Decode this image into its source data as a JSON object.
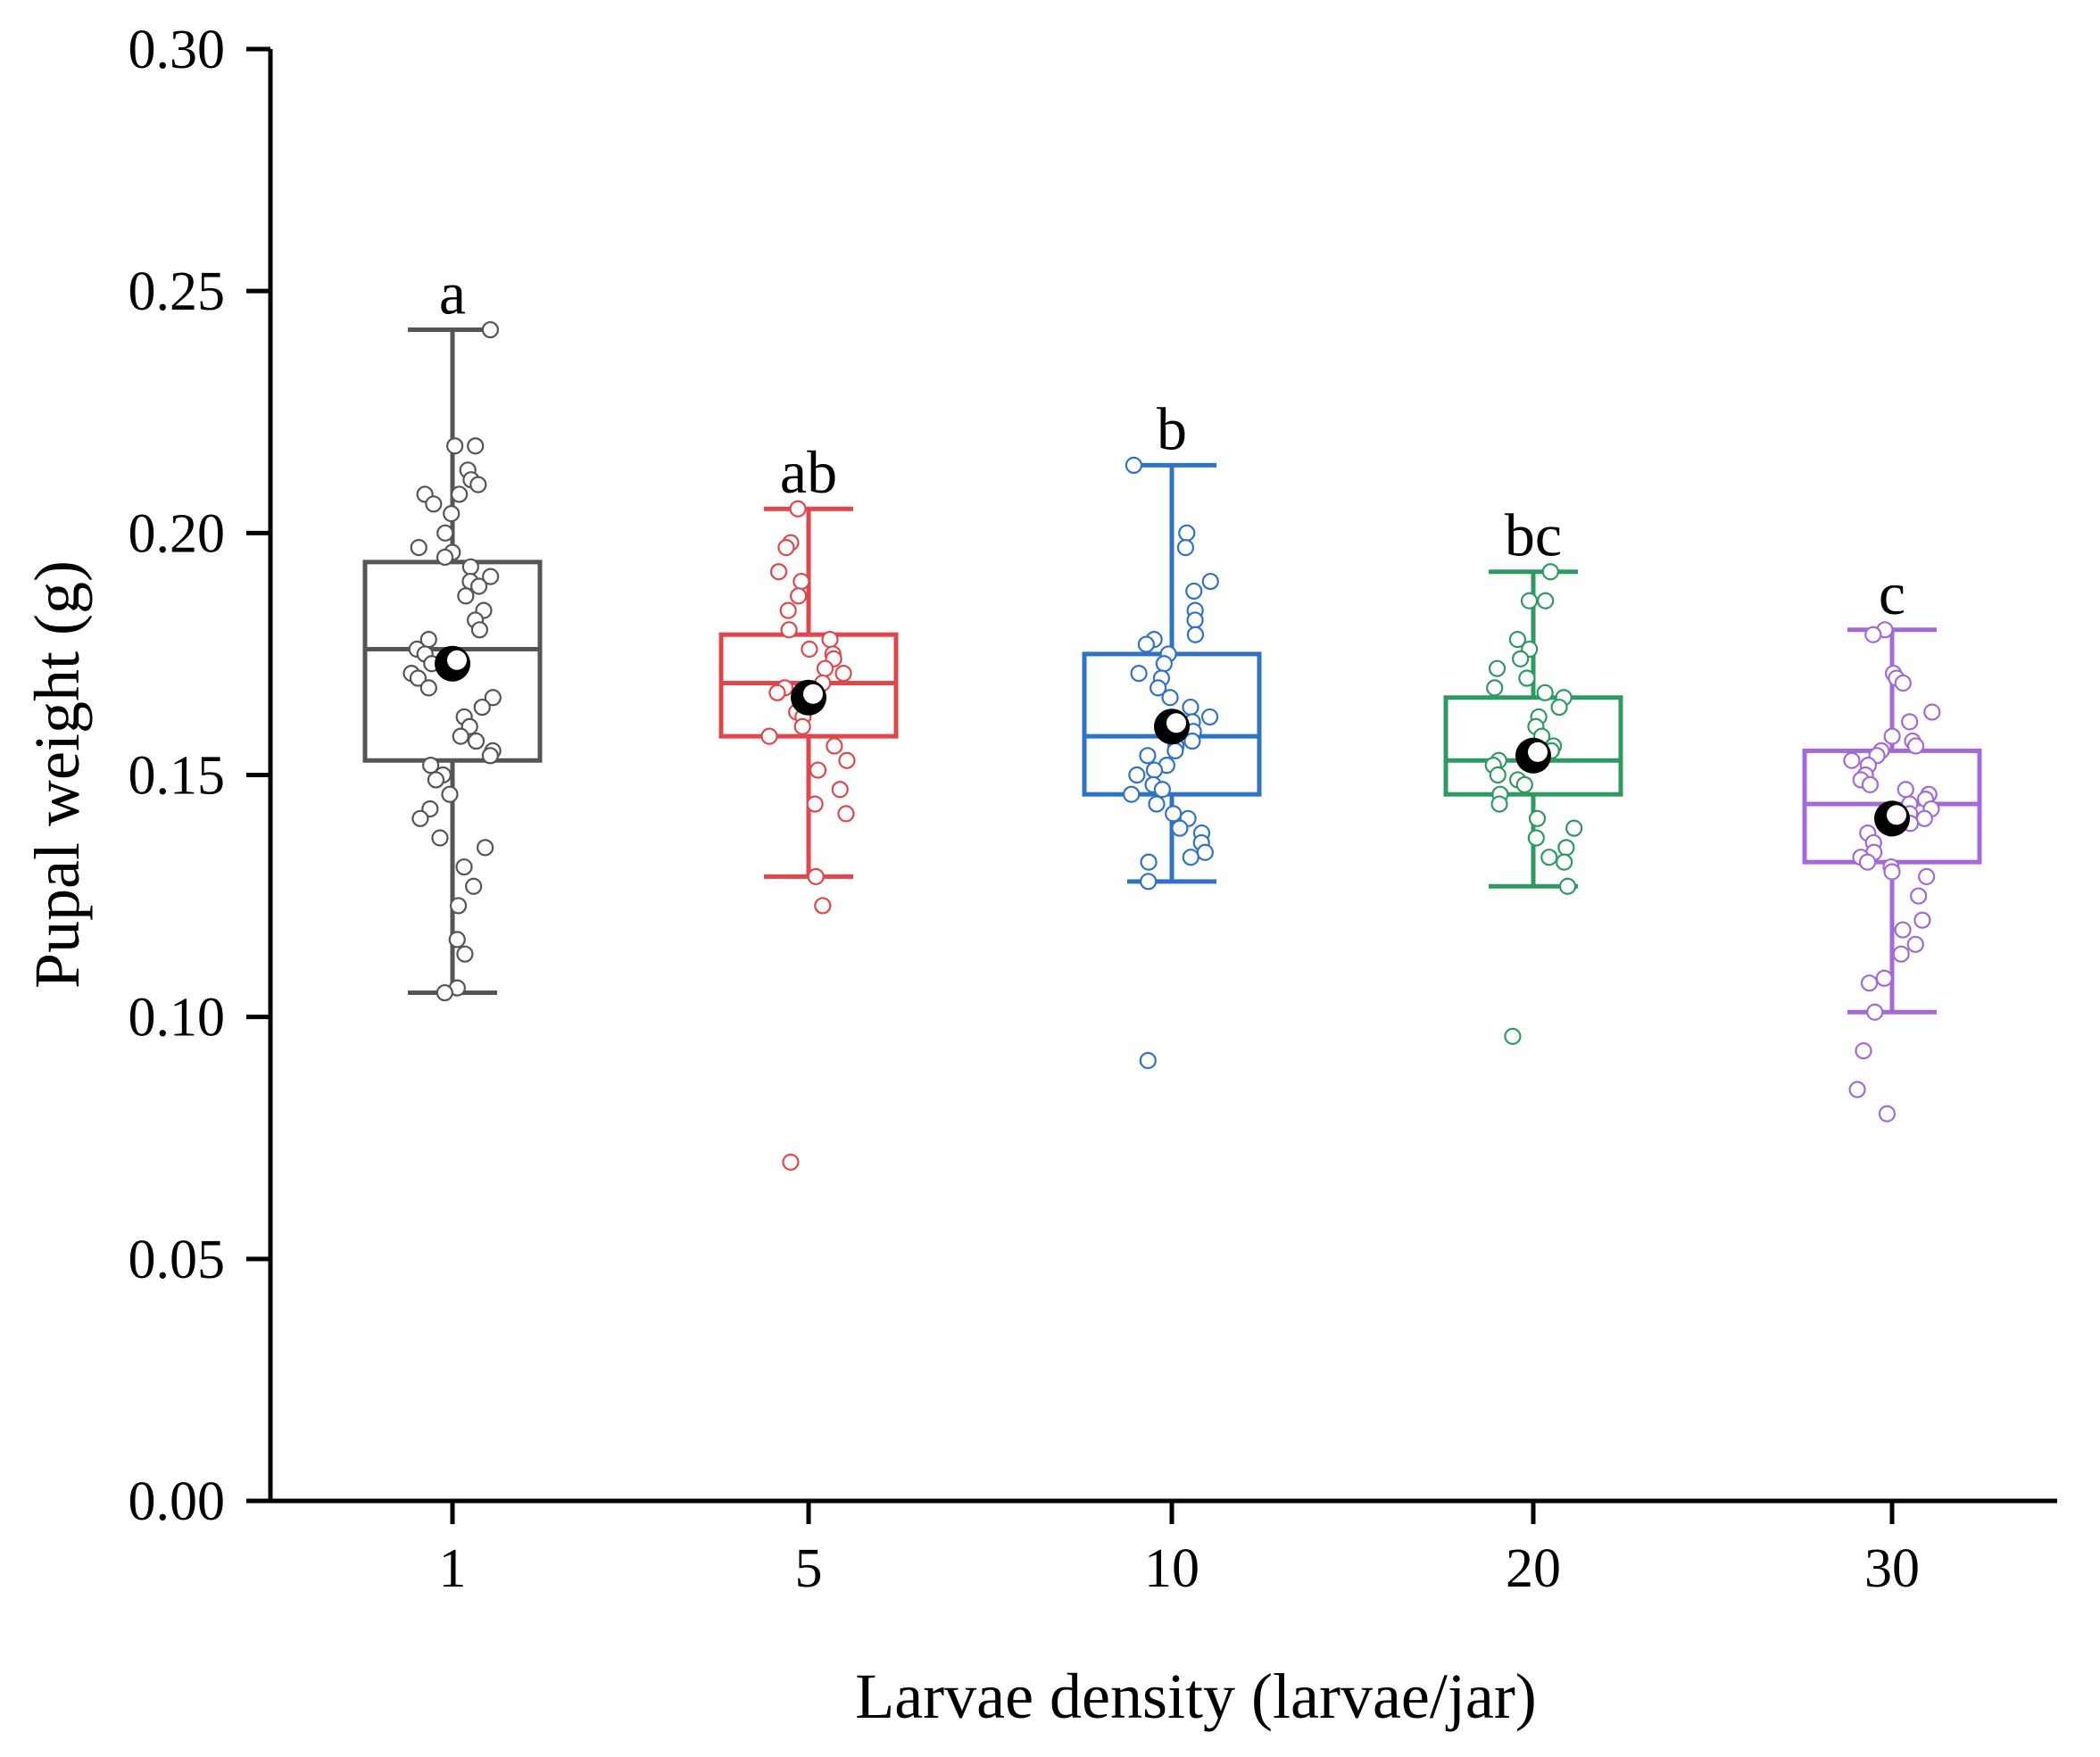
{
  "chart_data": {
    "type": "box",
    "title": "",
    "xlabel": "Larvae density (larvae/jar)",
    "ylabel": "Pupal weight (g)",
    "ylim": [
      0,
      0.3
    ],
    "yticks": [
      "0.00",
      "0.05",
      "0.10",
      "0.15",
      "0.20",
      "0.25",
      "0.30"
    ],
    "categories": [
      "1",
      "5",
      "10",
      "20",
      "30"
    ],
    "groups": [
      {
        "name": "1",
        "color": "#555555",
        "letter": "a",
        "whisker_low": 0.105,
        "q1": 0.153,
        "median": 0.176,
        "q3": 0.194,
        "whisker_high": 0.242,
        "mean": 0.173,
        "points": [
          0.242,
          0.218,
          0.218,
          0.213,
          0.211,
          0.21,
          0.208,
          0.208,
          0.206,
          0.204,
          0.2,
          0.197,
          0.196,
          0.195,
          0.193,
          0.191,
          0.19,
          0.189,
          0.187,
          0.184,
          0.182,
          0.18,
          0.178,
          0.176,
          0.175,
          0.173,
          0.171,
          0.17,
          0.168,
          0.166,
          0.164,
          0.162,
          0.16,
          0.158,
          0.157,
          0.155,
          0.154,
          0.152,
          0.15,
          0.149,
          0.146,
          0.143,
          0.141,
          0.137,
          0.135,
          0.131,
          0.127,
          0.123,
          0.116,
          0.113,
          0.106,
          0.105
        ]
      },
      {
        "name": "5",
        "color": "#e0474c",
        "letter": "ab",
        "whisker_low": 0.129,
        "q1": 0.158,
        "median": 0.169,
        "q3": 0.179,
        "whisker_high": 0.205,
        "mean": 0.166,
        "points": [
          0.205,
          0.198,
          0.197,
          0.192,
          0.19,
          0.187,
          0.184,
          0.18,
          0.178,
          0.176,
          0.175,
          0.174,
          0.172,
          0.171,
          0.169,
          0.168,
          0.167,
          0.165,
          0.163,
          0.162,
          0.16,
          0.158,
          0.156,
          0.153,
          0.151,
          0.147,
          0.144,
          0.142,
          0.129,
          0.123,
          0.07
        ]
      },
      {
        "name": "10",
        "color": "#2f72c8",
        "letter": "b",
        "whisker_low": 0.128,
        "q1": 0.146,
        "median": 0.158,
        "q3": 0.175,
        "whisker_high": 0.214,
        "mean": 0.16,
        "points": [
          0.214,
          0.2,
          0.197,
          0.19,
          0.188,
          0.184,
          0.182,
          0.179,
          0.178,
          0.177,
          0.175,
          0.173,
          0.171,
          0.17,
          0.168,
          0.166,
          0.164,
          0.162,
          0.161,
          0.159,
          0.157,
          0.156,
          0.155,
          0.154,
          0.152,
          0.151,
          0.15,
          0.148,
          0.147,
          0.146,
          0.144,
          0.142,
          0.141,
          0.139,
          0.138,
          0.136,
          0.134,
          0.133,
          0.132,
          0.128,
          0.091
        ]
      },
      {
        "name": "20",
        "color": "#2e9a62",
        "letter": "bc",
        "whisker_low": 0.127,
        "q1": 0.146,
        "median": 0.153,
        "q3": 0.166,
        "whisker_high": 0.192,
        "mean": 0.154,
        "points": [
          0.192,
          0.186,
          0.186,
          0.178,
          0.176,
          0.174,
          0.172,
          0.17,
          0.168,
          0.167,
          0.166,
          0.164,
          0.162,
          0.16,
          0.158,
          0.156,
          0.155,
          0.153,
          0.152,
          0.15,
          0.149,
          0.148,
          0.146,
          0.144,
          0.141,
          0.139,
          0.137,
          0.135,
          0.133,
          0.132,
          0.127,
          0.096
        ]
      },
      {
        "name": "30",
        "color": "#a369d8",
        "letter": "c",
        "whisker_low": 0.101,
        "q1": 0.132,
        "median": 0.144,
        "q3": 0.155,
        "whisker_high": 0.18,
        "mean": 0.141,
        "points": [
          0.18,
          0.179,
          0.171,
          0.17,
          0.169,
          0.163,
          0.161,
          0.158,
          0.157,
          0.156,
          0.155,
          0.154,
          0.153,
          0.152,
          0.15,
          0.149,
          0.148,
          0.147,
          0.146,
          0.145,
          0.144,
          0.143,
          0.142,
          0.141,
          0.14,
          0.139,
          0.138,
          0.136,
          0.134,
          0.133,
          0.132,
          0.131,
          0.13,
          0.129,
          0.125,
          0.12,
          0.118,
          0.115,
          0.113,
          0.108,
          0.107,
          0.101,
          0.093,
          0.085,
          0.08
        ]
      }
    ]
  }
}
